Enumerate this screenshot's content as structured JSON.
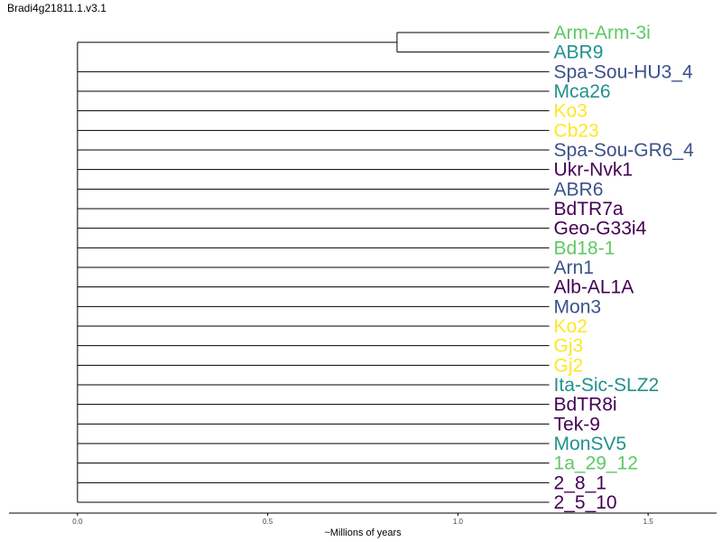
{
  "title": "Bradi4g21811.1.v3.1",
  "chart_data": {
    "type": "dendrogram",
    "title": "Bradi4g21811.1.v3.1",
    "xlabel": "~Millions of years",
    "xlim": [
      -0.18,
      1.68
    ],
    "x_ticks": [
      0.0,
      0.5,
      1.0,
      1.5
    ],
    "x_tick_labels": [
      "0.0",
      "0.5",
      "1.0",
      "1.5"
    ],
    "grid": false,
    "root_x": 0.0,
    "leaf_x": 1.24,
    "clades": [
      {
        "node_x": 0.84,
        "leaves": [
          0,
          1
        ]
      }
    ],
    "leaves": [
      {
        "label": "Arm-Arm-3i",
        "color": "#5ec962"
      },
      {
        "label": "ABR9",
        "color": "#21918c"
      },
      {
        "label": "Spa-Sou-HU3_4",
        "color": "#3b528b"
      },
      {
        "label": "Mca26",
        "color": "#21918c"
      },
      {
        "label": "Ko3",
        "color": "#fde725"
      },
      {
        "label": "Cb23",
        "color": "#fde725"
      },
      {
        "label": "Spa-Sou-GR6_4",
        "color": "#3b528b"
      },
      {
        "label": "Ukr-Nvk1",
        "color": "#440154"
      },
      {
        "label": "ABR6",
        "color": "#3b528b"
      },
      {
        "label": "BdTR7a",
        "color": "#440154"
      },
      {
        "label": "Geo-G33i4",
        "color": "#440154"
      },
      {
        "label": "Bd18-1",
        "color": "#5ec962"
      },
      {
        "label": "Arn1",
        "color": "#3b528b"
      },
      {
        "label": "Alb-AL1A",
        "color": "#440154"
      },
      {
        "label": "Mon3",
        "color": "#3b528b"
      },
      {
        "label": "Ko2",
        "color": "#fde725"
      },
      {
        "label": "Gj3",
        "color": "#fde725"
      },
      {
        "label": "Gj2",
        "color": "#fde725"
      },
      {
        "label": "Ita-Sic-SLZ2",
        "color": "#21918c"
      },
      {
        "label": "BdTR8i",
        "color": "#440154"
      },
      {
        "label": "Tek-9",
        "color": "#440154"
      },
      {
        "label": "MonSV5",
        "color": "#21918c"
      },
      {
        "label": "1a_29_12",
        "color": "#5ec962"
      },
      {
        "label": "2_8_1",
        "color": "#440154"
      },
      {
        "label": "2_5_10",
        "color": "#440154"
      }
    ]
  }
}
